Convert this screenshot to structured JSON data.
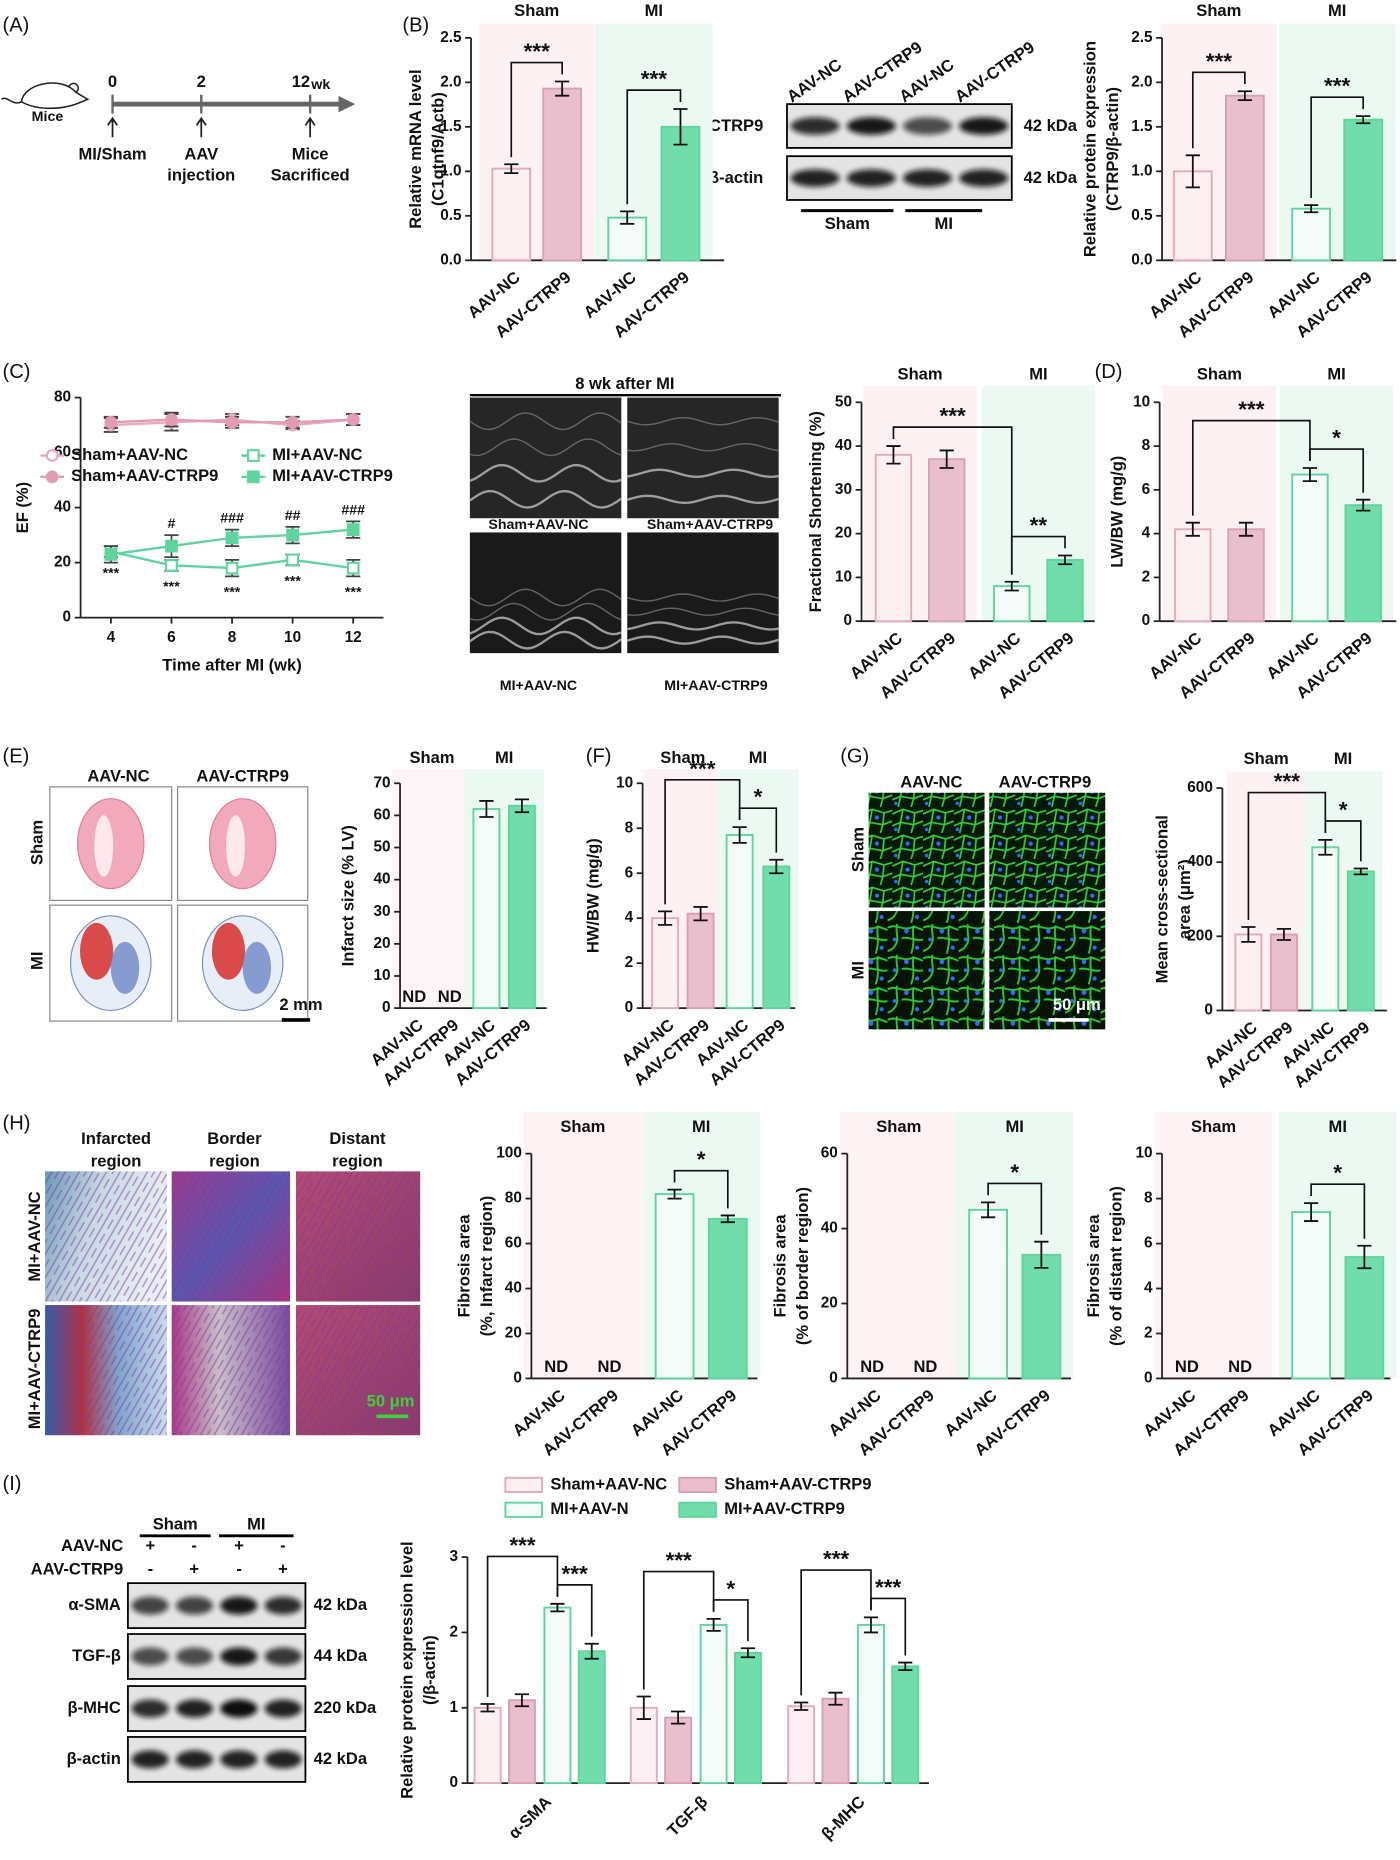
{
  "panel_labels": [
    "(A)",
    "(B)",
    "(C)",
    "(D)",
    "(E)",
    "(F)",
    "(G)",
    "(H)",
    "(I)"
  ],
  "timeline": {
    "subject": "Mice",
    "points": [
      {
        "time": "0",
        "event": [
          "MI/Sham"
        ]
      },
      {
        "time": "2",
        "event": [
          "AAV",
          "injection"
        ]
      },
      {
        "time": "12",
        "unit": "wk",
        "event": [
          "Mice",
          "Sacrificed"
        ]
      }
    ]
  },
  "blot_B": {
    "lanes": [
      "AAV-NC",
      "AAV-CTRP9",
      "AAV-NC",
      "AAV-CTRP9"
    ],
    "proteins": [
      {
        "name": "CTRP9",
        "size": "42 kDa"
      },
      {
        "name": "β-actin",
        "size": "42 kDa"
      }
    ],
    "groups": [
      "Sham",
      "MI"
    ]
  },
  "echo": {
    "title": "8 wk after MI",
    "panels": [
      "Sham+AAV-NC",
      "Sham+AAV-CTRP9",
      "MI+AAV-NC",
      "MI+AAV-CTRP9"
    ]
  },
  "histology_E": {
    "columns": [
      "AAV-NC",
      "AAV-CTRP9"
    ],
    "rows": [
      "Sham",
      "MI"
    ],
    "scale": "2 mm"
  },
  "stain_G": {
    "columns": [
      "AAV-NC",
      "AAV-CTRP9"
    ],
    "rows": [
      "Sham",
      "MI"
    ],
    "scale": "50 μm"
  },
  "masson_H": {
    "columns": [
      [
        "Infarcted",
        "region"
      ],
      [
        "Border",
        "region"
      ],
      [
        "Distant",
        "region"
      ]
    ],
    "rows": [
      "MI+AAV-NC",
      "MI+AAV-CTRP9"
    ],
    "scale": "50 μm"
  },
  "blot_I": {
    "groups": [
      "Sham",
      "MI"
    ],
    "conditions": [
      {
        "name": "AAV-NC",
        "signs": [
          "+",
          "-",
          "+",
          "-"
        ]
      },
      {
        "name": "AAV-CTRP9",
        "signs": [
          "-",
          "+",
          "-",
          "+"
        ]
      }
    ],
    "proteins": [
      {
        "name": "α-SMA",
        "size": "42 kDa"
      },
      {
        "name": "TGF-β",
        "size": "44 kDa"
      },
      {
        "name": "β-MHC",
        "size": "220 kDa"
      },
      {
        "name": "β-actin",
        "size": "42 kDa"
      }
    ]
  },
  "chart_data": [
    {
      "type": "bar",
      "ylabel": [
        "Relative mRNA  level",
        "(C1qtnf9/Actb)"
      ],
      "categories": [
        "AAV-NC",
        "AAV-CTRP9",
        "AAV-NC",
        "AAV-CTRP9"
      ],
      "values": [
        1.03,
        1.93,
        0.48,
        1.5
      ],
      "errors": [
        0.05,
        0.08,
        0.07,
        0.2
      ],
      "ylim": [
        0,
        2.5
      ],
      "yticks": [
        {
          "value": 0,
          "label": "0.0"
        },
        0.5,
        {
          "value": 1,
          "label": "1.0"
        },
        1.5,
        {
          "value": 2,
          "label": "2.0"
        },
        2.5
      ],
      "groups": [
        {
          "name": "Sham",
          "span": [
            0,
            1
          ]
        },
        {
          "name": "MI",
          "span": [
            2,
            3
          ]
        }
      ],
      "comparisons": [
        {
          "label": "***",
          "pair": [
            0,
            1
          ]
        },
        {
          "label": "***",
          "pair": [
            2,
            3
          ]
        }
      ],
      "bar_fills": [
        "#fdf0f3",
        "#e9bfcd",
        "#f3fcf8",
        "#72ddac"
      ],
      "bar_strokes": [
        "#e2aabb",
        "#d9a0b3",
        "#5fd49d",
        "#5fd49d"
      ],
      "shade_colors": [
        "#fdf1f3",
        "#ecf9f2"
      ]
    },
    {
      "type": "bar",
      "ylabel": [
        "Relative protein expression",
        "(CTRP9/β-actin)"
      ],
      "categories": [
        "AAV-NC",
        "AAV-CTRP9",
        "AAV-NC",
        "AAV-CTRP9"
      ],
      "values": [
        1.0,
        1.85,
        0.58,
        1.58
      ],
      "errors": [
        0.18,
        0.05,
        0.04,
        0.04
      ],
      "ylim": [
        0,
        2.5
      ],
      "yticks": [
        {
          "value": 0,
          "label": "0.0"
        },
        0.5,
        {
          "value": 1,
          "label": "1.0"
        },
        1.5,
        {
          "value": 2,
          "label": "2.0"
        },
        2.5
      ],
      "groups": [
        {
          "name": "Sham",
          "span": [
            0,
            1
          ]
        },
        {
          "name": "MI",
          "span": [
            2,
            3
          ]
        }
      ],
      "comparisons": [
        {
          "label": "***",
          "pair": [
            0,
            1
          ]
        },
        {
          "label": "***",
          "pair": [
            2,
            3
          ]
        }
      ],
      "bar_fills": [
        "#fdf0f3",
        "#e9bfcd",
        "#f3fcf8",
        "#72ddac"
      ],
      "bar_strokes": [
        "#e2aabb",
        "#d9a0b3",
        "#5fd49d",
        "#5fd49d"
      ],
      "shade_colors": [
        "#fdf1f3",
        "#ecf9f2"
      ]
    },
    {
      "type": "line",
      "ylabel": "EF (%)",
      "xlabel": "Time after MI (wk)",
      "x": [
        4,
        6,
        8,
        10,
        12
      ],
      "xlim": [
        3,
        13
      ],
      "xticks": [
        4,
        6,
        8,
        10,
        12
      ],
      "ylim": [
        0,
        80
      ],
      "yticks": [
        0,
        20,
        40,
        60,
        80
      ],
      "series": [
        {
          "name": "Sham+AAV-NC",
          "color": "#e8a9bb",
          "marker": "circle-open",
          "values": [
            70,
            71,
            72,
            70,
            72
          ],
          "errors": [
            2.5,
            3,
            2,
            1.5,
            2
          ]
        },
        {
          "name": "Sham+AAV-CTRP9",
          "color": "#e39bb1",
          "marker": "circle",
          "values": [
            71,
            72,
            71,
            71,
            72
          ],
          "errors": [
            2,
            2.5,
            2,
            2,
            2
          ]
        },
        {
          "name": "MI+AAV-NC",
          "color": "#5fd49d",
          "marker": "square-open",
          "values": [
            24,
            19,
            18,
            21,
            18
          ],
          "errors": [
            2,
            2,
            3,
            2,
            3
          ],
          "point_labels": [
            "***",
            "***",
            "***",
            "***",
            "***"
          ],
          "label_position": "below"
        },
        {
          "name": "MI+AAV-CTRP9",
          "color": "#5fd49d",
          "marker": "square",
          "values": [
            23,
            26,
            29,
            30,
            32
          ],
          "errors": [
            3,
            4,
            3,
            3,
            3
          ],
          "point_labels": [
            null,
            "#",
            "###",
            "##",
            "###"
          ],
          "label_position": "above"
        }
      ]
    },
    {
      "type": "bar",
      "ylabel": "Fractional Shortening (%)",
      "categories": [
        "AAV-NC",
        "AAV-CTRP9",
        "AAV-NC",
        "AAV-CTRP9"
      ],
      "values": [
        38,
        37,
        8,
        14
      ],
      "errors": [
        2,
        2,
        1,
        1
      ],
      "ylim": [
        0,
        50
      ],
      "yticks": [
        0,
        10,
        20,
        30,
        40,
        50
      ],
      "groups": [
        {
          "name": "Sham",
          "span": [
            0,
            1
          ]
        },
        {
          "name": "MI",
          "span": [
            2,
            3
          ]
        }
      ],
      "comparisons": [
        {
          "label": "**",
          "pair": [
            2,
            3
          ]
        },
        {
          "label": "***",
          "pair": [
            0,
            2
          ]
        }
      ],
      "bar_fills": [
        "#fdf0f3",
        "#e9bfcd",
        "#f3fcf8",
        "#72ddac"
      ],
      "bar_strokes": [
        "#e2aabb",
        "#d9a0b3",
        "#5fd49d",
        "#5fd49d"
      ],
      "shade_colors": [
        "#fdf1f3",
        "#ecf9f2"
      ]
    },
    {
      "type": "bar",
      "ylabel": "LW/BW (mg/g)",
      "categories": [
        "AAV-NC",
        "AAV-CTRP9",
        "AAV-NC",
        "AAV-CTRP9"
      ],
      "values": [
        4.2,
        4.2,
        6.7,
        5.3
      ],
      "errors": [
        0.3,
        0.3,
        0.3,
        0.25
      ],
      "ylim": [
        0,
        10
      ],
      "yticks": [
        0,
        2,
        4,
        6,
        8,
        10
      ],
      "groups": [
        {
          "name": "Sham",
          "span": [
            0,
            1
          ]
        },
        {
          "name": "MI",
          "span": [
            2,
            3
          ]
        }
      ],
      "comparisons": [
        {
          "label": "*",
          "pair": [
            2,
            3
          ]
        },
        {
          "label": "***",
          "pair": [
            0,
            2
          ]
        }
      ],
      "bar_fills": [
        "#fdf0f3",
        "#e9bfcd",
        "#f3fcf8",
        "#72ddac"
      ],
      "bar_strokes": [
        "#e2aabb",
        "#d9a0b3",
        "#5fd49d",
        "#5fd49d"
      ],
      "shade_colors": [
        "#fdf1f3",
        "#ecf9f2"
      ]
    },
    {
      "type": "bar",
      "ylabel": "Infarct size (% LV)",
      "categories": [
        "AAV-NC",
        "AAV-CTRP9",
        "AAV-NC",
        "AAV-CTRP9"
      ],
      "values": [
        null,
        null,
        62,
        63
      ],
      "value_labels": [
        "ND",
        "ND",
        null,
        null
      ],
      "errors": [
        null,
        null,
        2.5,
        2
      ],
      "ylim": [
        0,
        70
      ],
      "yticks": [
        0,
        10,
        20,
        30,
        40,
        50,
        60,
        70
      ],
      "groups": [
        {
          "name": "Sham",
          "span": [
            0,
            1
          ]
        },
        {
          "name": "MI",
          "span": [
            2,
            3
          ]
        }
      ],
      "bar_fills": [
        "#fdf0f3",
        "#e9bfcd",
        "#f3fcf8",
        "#72ddac"
      ],
      "bar_strokes": [
        "#e2aabb",
        "#d9a0b3",
        "#5fd49d",
        "#5fd49d"
      ],
      "shade_colors": [
        "#fdf5f7",
        "#ecf9f2"
      ]
    },
    {
      "type": "bar",
      "ylabel": "HW/BW (mg/g)",
      "categories": [
        "AAV-NC",
        "AAV-CTRP9",
        "AAV-NC",
        "AAV-CTRP9"
      ],
      "values": [
        4.0,
        4.2,
        7.7,
        6.3
      ],
      "errors": [
        0.3,
        0.3,
        0.35,
        0.3
      ],
      "ylim": [
        0,
        10
      ],
      "yticks": [
        0,
        2,
        4,
        6,
        8,
        10
      ],
      "groups": [
        {
          "name": "Sham",
          "span": [
            0,
            1
          ]
        },
        {
          "name": "MI",
          "span": [
            2,
            3
          ]
        }
      ],
      "comparisons": [
        {
          "label": "*",
          "pair": [
            2,
            3
          ]
        },
        {
          "label": "***",
          "pair": [
            0,
            2
          ]
        }
      ],
      "bar_fills": [
        "#fdf0f3",
        "#e9bfcd",
        "#f3fcf8",
        "#72ddac"
      ],
      "bar_strokes": [
        "#e2aabb",
        "#d9a0b3",
        "#5fd49d",
        "#5fd49d"
      ],
      "shade_colors": [
        "#fdf1f3",
        "#ecf9f2"
      ]
    },
    {
      "type": "bar",
      "ylabel": [
        "Mean cross-sectional",
        "area (μm²)"
      ],
      "categories": [
        "AAV-NC",
        "AAV-CTRP9",
        "AAV-NC",
        "AAV-CTRP9"
      ],
      "values": [
        205,
        205,
        440,
        375
      ],
      "errors": [
        20,
        15,
        20,
        8
      ],
      "ylim": [
        0,
        600
      ],
      "yticks": [
        0,
        200,
        400,
        600
      ],
      "groups": [
        {
          "name": "Sham",
          "span": [
            0,
            1
          ]
        },
        {
          "name": "MI",
          "span": [
            2,
            3
          ]
        }
      ],
      "comparisons": [
        {
          "label": "*",
          "pair": [
            2,
            3
          ]
        },
        {
          "label": "***",
          "pair": [
            0,
            2
          ]
        }
      ],
      "bar_fills": [
        "#fdf0f3",
        "#e9bfcd",
        "#f3fcf8",
        "#72ddac"
      ],
      "bar_strokes": [
        "#e2aabb",
        "#d9a0b3",
        "#5fd49d",
        "#5fd49d"
      ],
      "shade_colors": [
        "#fdf1f3",
        "#ecf9f2"
      ]
    },
    {
      "type": "bar",
      "ylabel": [
        "Fibrosis area",
        "(%, Infarct region)"
      ],
      "categories": [
        "AAV-NC",
        "AAV-CTRP9",
        "AAV-NC",
        "AAV-CTRP9"
      ],
      "values": [
        null,
        null,
        82,
        71
      ],
      "value_labels": [
        "ND",
        "ND",
        null,
        null
      ],
      "errors": [
        null,
        null,
        2,
        1.5
      ],
      "ylim": [
        0,
        100
      ],
      "yticks": [
        0,
        20,
        40,
        60,
        80,
        100
      ],
      "groups": [
        {
          "name": "Sham",
          "span": [
            0,
            1
          ]
        },
        {
          "name": "MI",
          "span": [
            2,
            3
          ]
        }
      ],
      "comparisons": [
        {
          "label": "*",
          "pair": [
            2,
            3
          ]
        }
      ],
      "bar_fills": [
        "#fdf0f3",
        "#e9bfcd",
        "#f3fcf8",
        "#72ddac"
      ],
      "bar_strokes": [
        "#e2aabb",
        "#d9a0b3",
        "#5fd49d",
        "#5fd49d"
      ],
      "shade_colors": [
        "#fdf3f5",
        "#ecf9f2"
      ]
    },
    {
      "type": "bar",
      "ylabel": [
        "Fibrosis area",
        "(% of border region)"
      ],
      "categories": [
        "AAV-NC",
        "AAV-CTRP9",
        "AAV-NC",
        "AAV-CTRP9"
      ],
      "values": [
        null,
        null,
        45,
        33
      ],
      "value_labels": [
        "ND",
        "ND",
        null,
        null
      ],
      "errors": [
        null,
        null,
        2,
        3.5
      ],
      "ylim": [
        0,
        60
      ],
      "yticks": [
        0,
        20,
        40,
        60
      ],
      "groups": [
        {
          "name": "Sham",
          "span": [
            0,
            1
          ]
        },
        {
          "name": "MI",
          "span": [
            2,
            3
          ]
        }
      ],
      "comparisons": [
        {
          "label": "*",
          "pair": [
            2,
            3
          ]
        }
      ],
      "bar_fills": [
        "#fdf0f3",
        "#e9bfcd",
        "#f3fcf8",
        "#72ddac"
      ],
      "bar_strokes": [
        "#e2aabb",
        "#d9a0b3",
        "#5fd49d",
        "#5fd49d"
      ],
      "shade_colors": [
        "#fdf3f5",
        "#ecf9f2"
      ]
    },
    {
      "type": "bar",
      "ylabel": [
        "Fibrosis area",
        "(% of distant region)"
      ],
      "categories": [
        "AAV-NC",
        "AAV-CTRP9",
        "AAV-NC",
        "AAV-CTRP9"
      ],
      "values": [
        null,
        null,
        7.4,
        5.4
      ],
      "value_labels": [
        "ND",
        "ND",
        null,
        null
      ],
      "errors": [
        null,
        null,
        0.4,
        0.5
      ],
      "ylim": [
        0,
        10
      ],
      "yticks": [
        0,
        2,
        4,
        6,
        8,
        10
      ],
      "groups": [
        {
          "name": "Sham",
          "span": [
            0,
            1
          ]
        },
        {
          "name": "MI",
          "span": [
            2,
            3
          ]
        }
      ],
      "comparisons": [
        {
          "label": "*",
          "pair": [
            2,
            3
          ]
        }
      ],
      "bar_fills": [
        "#fdf0f3",
        "#e9bfcd",
        "#f3fcf8",
        "#72ddac"
      ],
      "bar_strokes": [
        "#e2aabb",
        "#d9a0b3",
        "#5fd49d",
        "#5fd49d"
      ],
      "shade_colors": [
        "#fdf3f5",
        "#ecf9f2"
      ]
    },
    {
      "type": "grouped_bar",
      "ylabel": [
        "Relative protein expression level",
        "(/β-actin)"
      ],
      "categories": [
        "α-SMA",
        "TGF-β",
        "β-MHC"
      ],
      "ylim": [
        0,
        3
      ],
      "yticks": [
        0,
        1,
        2,
        3
      ],
      "series": [
        {
          "name": "Sham+AAV-NC",
          "color": "#fdf0f3",
          "stroke": "#e2aabb",
          "values": [
            1.0,
            1.0,
            1.02
          ],
          "errors": [
            0.05,
            0.15,
            0.05
          ]
        },
        {
          "name": "Sham+AAV-CTRP9",
          "color": "#e9bfcd",
          "stroke": "#d9a0b3",
          "values": [
            1.1,
            0.87,
            1.12
          ],
          "errors": [
            0.08,
            0.08,
            0.08
          ]
        },
        {
          "name": "MI+AAV-N",
          "color": "#f3fcf8",
          "stroke": "#5fd49d",
          "values": [
            2.33,
            2.1,
            2.1
          ],
          "errors": [
            0.05,
            0.08,
            0.1
          ]
        },
        {
          "name": "MI+AAV-CTRP9",
          "color": "#72ddac",
          "stroke": "#5fd49d",
          "values": [
            1.75,
            1.73,
            1.55
          ],
          "errors": [
            0.1,
            0.06,
            0.05
          ]
        }
      ],
      "comparisons": [
        [
          {
            "label": "***",
            "pair": [
              2,
              3
            ]
          },
          {
            "label": "***",
            "pair": [
              0,
              2
            ]
          }
        ],
        [
          {
            "label": "*",
            "pair": [
              2,
              3
            ]
          },
          {
            "label": "***",
            "pair": [
              0,
              2
            ]
          }
        ],
        [
          {
            "label": "***",
            "pair": [
              2,
              3
            ]
          },
          {
            "label": "***",
            "pair": [
              0,
              2
            ]
          }
        ]
      ]
    }
  ]
}
